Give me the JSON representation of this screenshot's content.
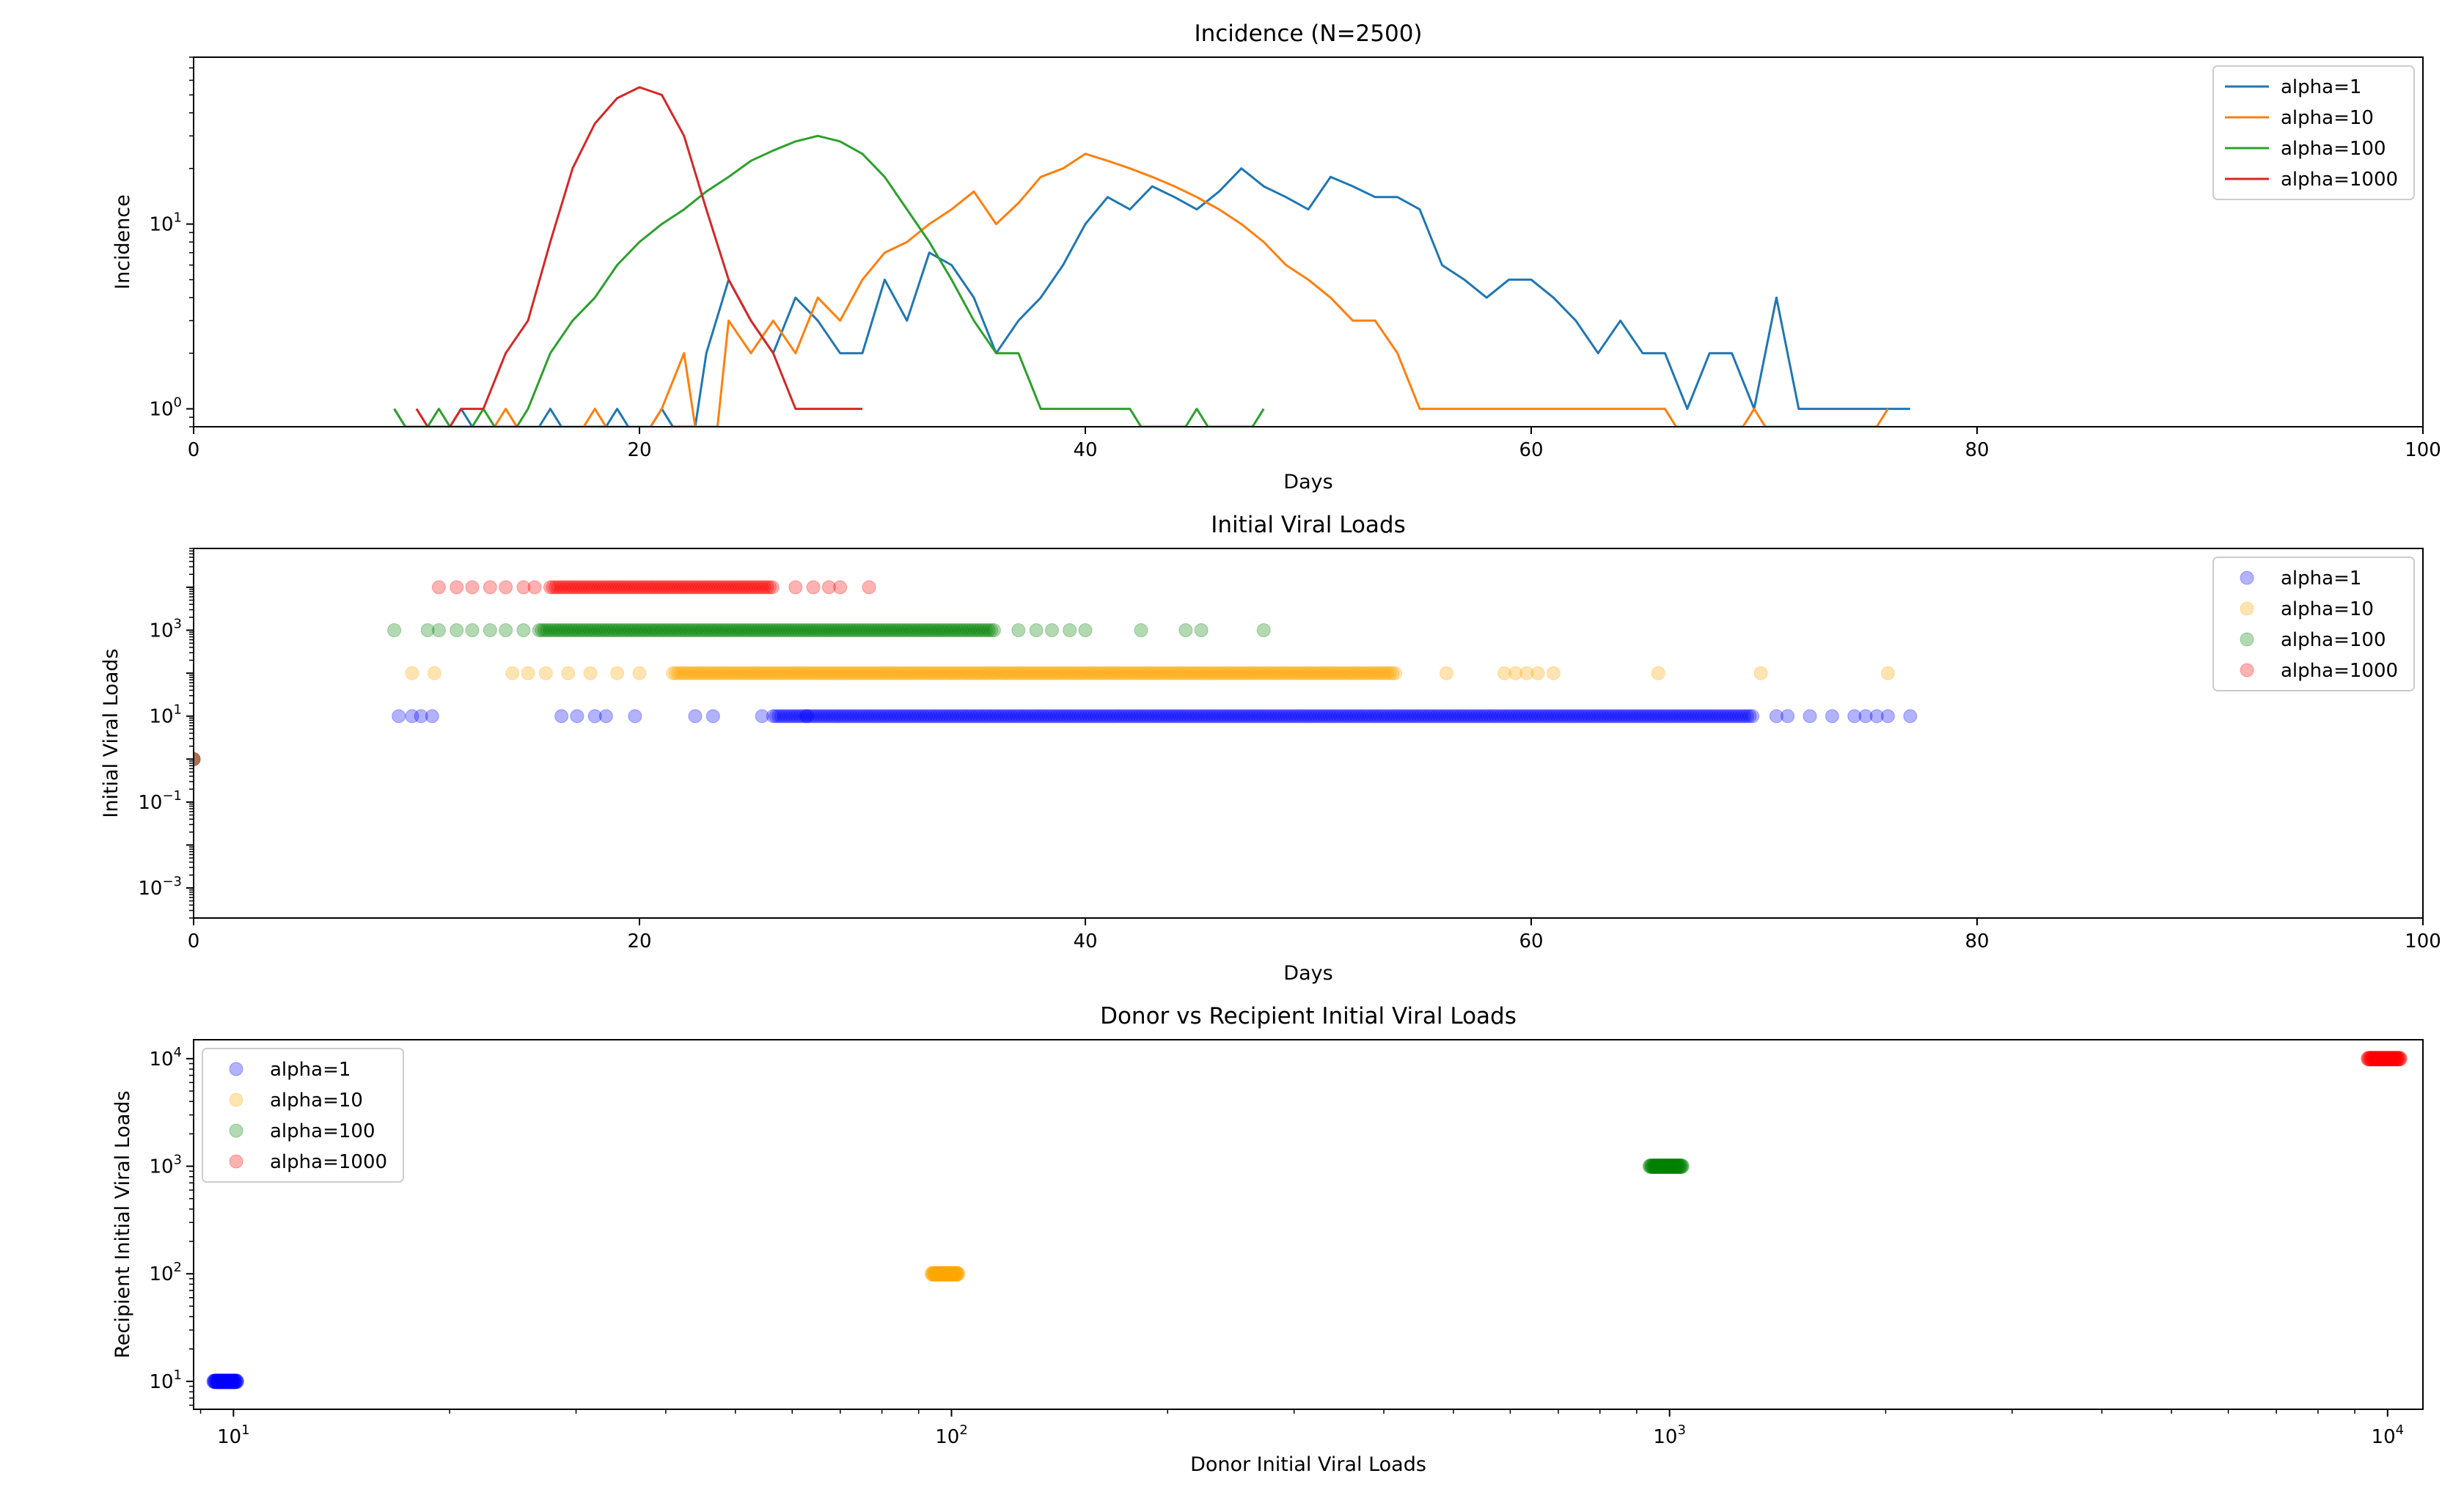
{
  "chart_data": [
    {
      "type": "line",
      "title": "Incidence (N=2500)",
      "xlabel": "Days",
      "ylabel": "Incidence",
      "xlim": [
        0,
        100
      ],
      "ylim": [
        0.8,
        80
      ],
      "yscale": "log",
      "xticks": [
        "0",
        "20",
        "40",
        "60",
        "80",
        "100"
      ],
      "yticks": [
        {
          "base": "10",
          "exp": "0",
          "value": 1
        },
        {
          "base": "10",
          "exp": "1",
          "value": 10
        }
      ],
      "legend": "top-right",
      "series": [
        {
          "name": "alpha=1",
          "color": "#1f77b4",
          "x": [
            9,
            12,
            16,
            19,
            21,
            23,
            24,
            25,
            26,
            27,
            28,
            29,
            30,
            31,
            32,
            33,
            34,
            35,
            36,
            37,
            38,
            39,
            40,
            41,
            42,
            43,
            44,
            45,
            46,
            47,
            48,
            49,
            50,
            51,
            52,
            53,
            54,
            55,
            56,
            57,
            58,
            59,
            60,
            61,
            62,
            63,
            64,
            65,
            66,
            67,
            68,
            69,
            70,
            71,
            72,
            73,
            74,
            75,
            76,
            77
          ],
          "y": [
            1,
            1,
            1,
            1,
            1,
            2,
            5,
            3,
            2,
            4,
            3,
            2,
            2,
            5,
            3,
            7,
            6,
            4,
            2,
            3,
            4,
            6,
            10,
            14,
            12,
            16,
            14,
            12,
            15,
            20,
            16,
            14,
            12,
            18,
            16,
            14,
            14,
            12,
            6,
            5,
            4,
            5,
            5,
            4,
            3,
            2,
            3,
            2,
            2,
            1,
            2,
            2,
            1,
            4,
            1,
            1,
            1,
            1,
            1,
            1
          ]
        },
        {
          "name": "alpha=10",
          "color": "#ff7f0e",
          "x": [
            10,
            14,
            18,
            21,
            22,
            24,
            25,
            26,
            27,
            28,
            29,
            30,
            31,
            32,
            33,
            34,
            35,
            36,
            37,
            38,
            39,
            40,
            41,
            42,
            43,
            44,
            45,
            46,
            47,
            48,
            49,
            50,
            51,
            52,
            53,
            54,
            55,
            56,
            57,
            58,
            59,
            60,
            61,
            62,
            63,
            64,
            65,
            66,
            70,
            76
          ],
          "y": [
            1,
            1,
            1,
            1,
            2,
            3,
            2,
            3,
            2,
            4,
            3,
            5,
            7,
            8,
            10,
            12,
            15,
            10,
            13,
            18,
            20,
            24,
            22,
            20,
            18,
            16,
            14,
            12,
            10,
            8,
            6,
            5,
            4,
            3,
            3,
            2,
            1,
            1,
            1,
            1,
            1,
            1,
            1,
            1,
            1,
            1,
            1,
            1,
            1,
            1
          ]
        },
        {
          "name": "alpha=100",
          "color": "#2ca02c",
          "x": [
            9,
            11,
            13,
            15,
            16,
            17,
            18,
            19,
            20,
            21,
            22,
            23,
            24,
            25,
            26,
            27,
            28,
            29,
            30,
            31,
            32,
            33,
            34,
            35,
            36,
            37,
            38,
            39,
            40,
            41,
            42,
            45,
            48
          ],
          "y": [
            1,
            1,
            1,
            1,
            2,
            3,
            4,
            6,
            8,
            10,
            12,
            15,
            18,
            22,
            25,
            28,
            30,
            28,
            24,
            18,
            12,
            8,
            5,
            3,
            2,
            2,
            1,
            1,
            1,
            1,
            1,
            1,
            1
          ]
        },
        {
          "name": "alpha=1000",
          "color": "#d62728",
          "x": [
            10,
            12,
            13,
            14,
            15,
            16,
            17,
            18,
            19,
            20,
            21,
            22,
            23,
            24,
            25,
            26,
            27,
            28,
            29,
            30
          ],
          "y": [
            1,
            1,
            1,
            2,
            3,
            8,
            20,
            35,
            48,
            55,
            50,
            30,
            12,
            5,
            3,
            2,
            1,
            1,
            1,
            1
          ]
        }
      ]
    },
    {
      "type": "scatter",
      "title": "Initial Viral Loads",
      "xlabel": "Days",
      "ylabel": "Initial Viral Loads",
      "xlim": [
        0,
        100
      ],
      "ylim": [
        0.0002,
        80000
      ],
      "yscale": "log",
      "xticks": [
        "0",
        "20",
        "40",
        "60",
        "80",
        "100"
      ],
      "yticks": [
        {
          "base": "10",
          "exp": "−3",
          "value": 0.001
        },
        {
          "base": "10",
          "exp": "−1",
          "value": 0.1
        },
        {
          "base": "10",
          "exp": "1",
          "value": 10
        },
        {
          "base": "10",
          "exp": "3",
          "value": 1000
        }
      ],
      "legend": "top-right",
      "series": [
        {
          "name": "alpha=1",
          "color": "#0000ff",
          "value": 10,
          "dense_x": [
            [
              26,
              70
            ]
          ],
          "sparse_x": [
            0,
            9.2,
            9.8,
            10.2,
            10.7,
            16.5,
            17.2,
            18,
            18.5,
            19.8,
            22.5,
            23.3,
            25.5,
            27.5,
            71,
            71.5,
            72.5,
            73.5,
            74.5,
            75,
            75.5,
            76,
            77
          ]
        },
        {
          "name": "alpha=10",
          "color": "#ffa500",
          "value": 100,
          "dense_x": [
            [
              21.5,
              54
            ]
          ],
          "sparse_x": [
            0,
            9.8,
            10.8,
            14.3,
            15,
            15.8,
            16.8,
            17.8,
            19,
            20,
            56.2,
            58.8,
            59.3,
            59.8,
            60.3,
            61,
            65.7,
            70.3,
            76
          ]
        },
        {
          "name": "alpha=100",
          "color": "#008000",
          "value": 1000,
          "dense_x": [
            [
              15.5,
              36
            ]
          ],
          "sparse_x": [
            0,
            9,
            10.5,
            11,
            11.8,
            12.5,
            13.3,
            14,
            14.8,
            37,
            37.8,
            38.5,
            39.3,
            40,
            42.5,
            44.5,
            45.2,
            48
          ]
        },
        {
          "name": "alpha=1000",
          "color": "#ff0000",
          "value": 10000,
          "dense_x": [
            [
              16,
              26
            ]
          ],
          "sparse_x": [
            0,
            11,
            11.8,
            12.5,
            13.3,
            14,
            14.8,
            15.3,
            27,
            27.8,
            28.5,
            29,
            30.3
          ]
        }
      ]
    },
    {
      "type": "scatter",
      "title": "Donor vs Recipient Initial Viral Loads",
      "xlabel": "Donor Initial Viral Loads",
      "ylabel": "Recipient Initial Viral Loads",
      "xlim": [
        8.8,
        11200
      ],
      "ylim": [
        5.5,
        15000
      ],
      "xscale": "log",
      "yscale": "log",
      "xticks": [
        {
          "base": "10",
          "exp": "1",
          "value": 10
        },
        {
          "base": "10",
          "exp": "2",
          "value": 100
        },
        {
          "base": "10",
          "exp": "3",
          "value": 1000
        },
        {
          "base": "10",
          "exp": "4",
          "value": 10000
        }
      ],
      "yticks": [
        {
          "base": "10",
          "exp": "1",
          "value": 10
        },
        {
          "base": "10",
          "exp": "2",
          "value": 100
        },
        {
          "base": "10",
          "exp": "3",
          "value": 1000
        },
        {
          "base": "10",
          "exp": "4",
          "value": 10000
        }
      ],
      "legend": "top-left",
      "series": [
        {
          "name": "alpha=1",
          "color": "#0000ff",
          "x_range": [
            9.4,
            10.1
          ],
          "y": 10
        },
        {
          "name": "alpha=10",
          "color": "#ffa500",
          "x_range": [
            94,
            102
          ],
          "y": 100
        },
        {
          "name": "alpha=100",
          "color": "#008000",
          "x_range": [
            940,
            1040
          ],
          "y": 1000
        },
        {
          "name": "alpha=1000",
          "color": "#ff0000",
          "x_range": [
            9400,
            10400
          ],
          "y": 10000
        }
      ]
    }
  ]
}
